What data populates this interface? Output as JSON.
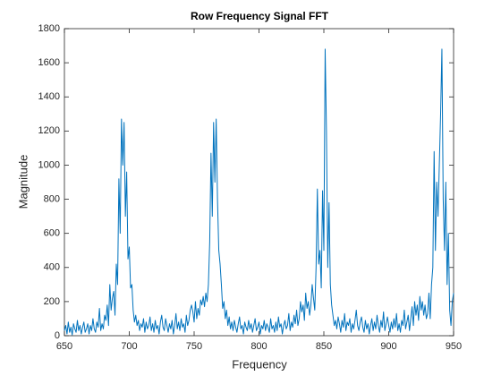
{
  "chart_data": {
    "type": "line",
    "title": "Row Frequency Signal FFT",
    "xlabel": "Frequency",
    "ylabel": "Magnitude",
    "color": "#0072bd",
    "xlim": [
      650,
      950
    ],
    "xticks": [
      650,
      700,
      750,
      800,
      850,
      900,
      950
    ],
    "ylim": [
      0,
      1800
    ],
    "yticks": [
      0,
      200,
      400,
      600,
      800,
      1000,
      1200,
      1400,
      1600,
      1800
    ],
    "x": [
      650,
      651,
      652,
      653,
      654,
      655,
      656,
      657,
      658,
      659,
      660,
      661,
      662,
      663,
      664,
      665,
      666,
      667,
      668,
      669,
      670,
      671,
      672,
      673,
      674,
      675,
      676,
      677,
      678,
      679,
      680,
      681,
      682,
      683,
      684,
      685,
      686,
      687,
      688,
      689,
      690,
      691,
      692,
      693,
      694,
      695,
      696,
      697,
      698,
      699,
      700,
      701,
      702,
      703,
      704,
      705,
      706,
      707,
      708,
      709,
      710,
      711,
      712,
      713,
      714,
      715,
      716,
      717,
      718,
      719,
      720,
      721,
      722,
      723,
      724,
      725,
      726,
      727,
      728,
      729,
      730,
      731,
      732,
      733,
      734,
      735,
      736,
      737,
      738,
      739,
      740,
      741,
      742,
      743,
      744,
      745,
      746,
      747,
      748,
      749,
      750,
      751,
      752,
      753,
      754,
      755,
      756,
      757,
      758,
      759,
      760,
      761,
      762,
      763,
      764,
      765,
      766,
      767,
      768,
      769,
      770,
      771,
      772,
      773,
      774,
      775,
      776,
      777,
      778,
      779,
      780,
      781,
      782,
      783,
      784,
      785,
      786,
      787,
      788,
      789,
      790,
      791,
      792,
      793,
      794,
      795,
      796,
      797,
      798,
      799,
      800,
      801,
      802,
      803,
      804,
      805,
      806,
      807,
      808,
      809,
      810,
      811,
      812,
      813,
      814,
      815,
      816,
      817,
      818,
      819,
      820,
      821,
      822,
      823,
      824,
      825,
      826,
      827,
      828,
      829,
      830,
      831,
      832,
      833,
      834,
      835,
      836,
      837,
      838,
      839,
      840,
      841,
      842,
      843,
      844,
      845,
      846,
      847,
      848,
      849,
      850,
      851,
      852,
      853,
      854,
      855,
      856,
      857,
      858,
      859,
      860,
      861,
      862,
      863,
      864,
      865,
      866,
      867,
      868,
      869,
      870,
      871,
      872,
      873,
      874,
      875,
      876,
      877,
      878,
      879,
      880,
      881,
      882,
      883,
      884,
      885,
      886,
      887,
      888,
      889,
      890,
      891,
      892,
      893,
      894,
      895,
      896,
      897,
      898,
      899,
      900,
      901,
      902,
      903,
      904,
      905,
      906,
      907,
      908,
      909,
      910,
      911,
      912,
      913,
      914,
      915,
      916,
      917,
      918,
      919,
      920,
      921,
      922,
      923,
      924,
      925,
      926,
      927,
      928,
      929,
      930,
      931,
      932,
      933,
      934,
      935,
      936,
      937,
      938,
      939,
      940,
      941,
      942,
      943,
      944,
      945,
      946,
      947,
      948,
      949,
      950
    ],
    "values": [
      30,
      60,
      10,
      80,
      20,
      50,
      5,
      70,
      40,
      20,
      90,
      30,
      60,
      10,
      50,
      80,
      20,
      40,
      70,
      10,
      60,
      30,
      100,
      40,
      20,
      80,
      50,
      160,
      30,
      70,
      40,
      120,
      90,
      180,
      60,
      300,
      150,
      220,
      260,
      120,
      420,
      300,
      920,
      600,
      1270,
      1000,
      1250,
      700,
      960,
      450,
      520,
      280,
      300,
      150,
      80,
      120,
      60,
      90,
      30,
      70,
      50,
      100,
      20,
      80,
      40,
      60,
      110,
      30,
      70,
      20,
      90,
      40,
      60,
      10,
      80,
      120,
      50,
      30,
      100,
      60,
      20,
      70,
      40,
      90,
      10,
      60,
      130,
      40,
      80,
      30,
      100,
      50,
      70,
      20,
      120,
      60,
      90,
      150,
      180,
      140,
      80,
      200,
      100,
      160,
      120,
      210,
      180,
      230,
      170,
      250,
      200,
      300,
      550,
      1070,
      700,
      1250,
      900,
      1270,
      800,
      500,
      420,
      300,
      160,
      200,
      100,
      150,
      60,
      110,
      40,
      80,
      30,
      90,
      50,
      20,
      70,
      110,
      40,
      60,
      10,
      80,
      50,
      30,
      90,
      40,
      70,
      20,
      60,
      100,
      30,
      50,
      80,
      10,
      60,
      40,
      90,
      30,
      70,
      50,
      20,
      100,
      40,
      60,
      20,
      80,
      30,
      110,
      50,
      70,
      10,
      60,
      90,
      40,
      60,
      130,
      30,
      80,
      50,
      120,
      70,
      150,
      60,
      100,
      200,
      140,
      180,
      90,
      250,
      160,
      200,
      120,
      180,
      300,
      220,
      150,
      400,
      860,
      420,
      500,
      280,
      850,
      500,
      1680,
      1200,
      400,
      780,
      300,
      180,
      120,
      60,
      90,
      40,
      110,
      70,
      20,
      90,
      50,
      130,
      30,
      80,
      60,
      100,
      20,
      70,
      40,
      90,
      150,
      60,
      30,
      80,
      110,
      50,
      20,
      90,
      40,
      70,
      10,
      60,
      100,
      30,
      80,
      40,
      120,
      60,
      20,
      90,
      50,
      140,
      30,
      70,
      110,
      60,
      20,
      80,
      40,
      100,
      50,
      130,
      30,
      70,
      20,
      90,
      60,
      150,
      40,
      80,
      120,
      30,
      100,
      170,
      60,
      200,
      120,
      180,
      90,
      230,
      150,
      200,
      120,
      180,
      100,
      130,
      250,
      100,
      300,
      400,
      1080,
      500,
      900,
      700,
      1000,
      1300,
      1680,
      800,
      500,
      900,
      300,
      600,
      150,
      60,
      200,
      250
    ]
  }
}
